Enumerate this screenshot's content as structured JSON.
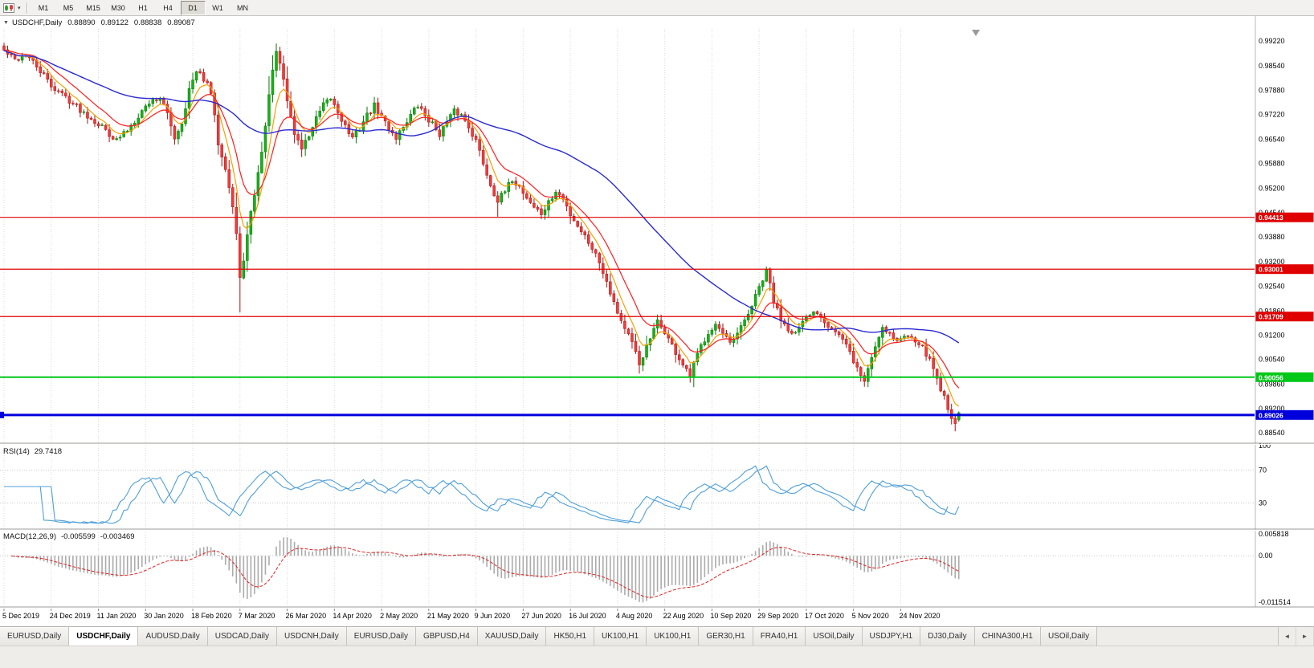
{
  "toolbar": {
    "timeframes": [
      "M1",
      "M5",
      "M15",
      "M30",
      "H1",
      "H4",
      "D1",
      "W1",
      "MN"
    ],
    "active_timeframe": "D1",
    "caret_icon": "▾"
  },
  "chart": {
    "title": "USDCHF,Daily",
    "title_caret": "▼",
    "ohlc": {
      "open": "0.88890",
      "high": "0.89122",
      "low": "0.88838",
      "close": "0.89087"
    },
    "price_axis": {
      "ticks": [
        "0.99220",
        "0.98540",
        "0.97880",
        "0.97220",
        "0.96540",
        "0.95880",
        "0.95200",
        "0.94540",
        "0.93880",
        "0.93200",
        "0.92540",
        "0.91860",
        "0.91200",
        "0.90540",
        "0.89860",
        "0.89200",
        "0.88540"
      ]
    },
    "hlines": [
      {
        "price": 0.94413,
        "label": "0.94413",
        "color": "#e00000",
        "width": 1.2
      },
      {
        "price": 0.93001,
        "label": "0.93001",
        "color": "#e00000",
        "width": 1.2
      },
      {
        "price": 0.91709,
        "label": "0.91709",
        "color": "#e00000",
        "width": 1.2
      },
      {
        "price": 0.90056,
        "label": "0.90056",
        "color": "#00c818",
        "width": 2
      },
      {
        "price": 0.89026,
        "label": "0.89026",
        "color": "#0000dc",
        "width": 3
      }
    ],
    "dates": [
      "5 Dec 2019",
      "24 Dec 2019",
      "11 Jan 2020",
      "30 Jan 2020",
      "18 Feb 2020",
      "7 Mar 2020",
      "26 Mar 2020",
      "14 Apr 2020",
      "2 May 2020",
      "21 May 2020",
      "9 Jun 2020",
      "27 Jun 2020",
      "16 Jul 2020",
      "4 Aug 2020",
      "22 Aug 2020",
      "10 Sep 2020",
      "29 Sep 2020",
      "17 Oct 2020",
      "5 Nov 2020",
      "24 Nov 2020"
    ],
    "colors": {
      "up_fill": "#17b117",
      "up_stroke": "#0a7a0a",
      "down_fill": "#f13b3b",
      "down_stroke": "#a81414",
      "grid": "#dbdbdb",
      "ma_fast": "#f5a000",
      "ma_medium": "#ff1c1c",
      "ma_slow": "#2a2ad2"
    }
  },
  "indicators": {
    "rsi": {
      "name": "RSI(14)",
      "value": "29.7418",
      "period": 14,
      "levels": [
        70,
        30
      ],
      "axis_labels": [
        {
          "value": 100,
          "label": "100"
        },
        {
          "value": 70,
          "label": "70"
        },
        {
          "value": 30,
          "label": "30"
        }
      ],
      "line_color": "#4f9fd8"
    },
    "macd": {
      "name": "MACD(12,26,9)",
      "value_macd": "-0.005599",
      "value_signal": "-0.003469",
      "fast": 12,
      "slow": 26,
      "signal": 9,
      "axis_max": 0.005818,
      "axis_min": -0.011514,
      "axis_labels": [
        {
          "value": 0.005818,
          "label": "0.005818"
        },
        {
          "value": 0,
          "label": "0.00"
        },
        {
          "value": -0.011514,
          "label": "-0.011514"
        }
      ],
      "histogram_color": "#ababab",
      "signal_color": "#e02020"
    }
  },
  "tabbar": {
    "items": [
      "EURUSD,Daily",
      "USDCHF,Daily",
      "AUDUSD,Daily",
      "USDCAD,Daily",
      "USDCNH,Daily",
      "EURUSD,Daily",
      "GBPUSD,H4",
      "XAUUSD,Daily",
      "HK50,H1",
      "UK100,H1",
      "UK100,H1",
      "GER30,H1",
      "FRA40,H1",
      "USOil,Daily",
      "USDJPY,H1",
      "DJ30,Daily",
      "CHINA300,H1",
      "USOil,Daily"
    ],
    "active_index": 1,
    "scroll_left_icon": "◄",
    "scroll_right_icon": "►"
  },
  "chart_data": {
    "type": "candlestick",
    "symbol": "USDCHF",
    "timeframe": "Daily",
    "num_candles": 264,
    "seed": 42,
    "noise": 0.0009,
    "price_min": 0.883,
    "price_max": 0.9955,
    "waypoints": [
      [
        0,
        0.9895
      ],
      [
        3,
        0.987
      ],
      [
        6,
        0.9885
      ],
      [
        10,
        0.984
      ],
      [
        13,
        0.98
      ],
      [
        17,
        0.977
      ],
      [
        21,
        0.9735
      ],
      [
        25,
        0.9705
      ],
      [
        28,
        0.968
      ],
      [
        31,
        0.965
      ],
      [
        34,
        0.968
      ],
      [
        37,
        0.972
      ],
      [
        40,
        0.9755
      ],
      [
        43,
        0.977
      ],
      [
        45,
        0.972
      ],
      [
        47,
        0.966
      ],
      [
        49,
        0.97
      ],
      [
        51,
        0.979
      ],
      [
        53,
        0.9835
      ],
      [
        55,
        0.982
      ],
      [
        57,
        0.978
      ],
      [
        59,
        0.9645
      ],
      [
        61,
        0.958
      ],
      [
        63,
        0.947
      ],
      [
        64,
        0.9395
      ],
      [
        65,
        0.927
      ],
      [
        66,
        0.933
      ],
      [
        67,
        0.939
      ],
      [
        68,
        0.945
      ],
      [
        70,
        0.956
      ],
      [
        72,
        0.969
      ],
      [
        74,
        0.985
      ],
      [
        75,
        0.9885
      ],
      [
        76,
        0.986
      ],
      [
        78,
        0.976
      ],
      [
        80,
        0.967
      ],
      [
        82,
        0.963
      ],
      [
        84,
        0.9665
      ],
      [
        86,
        0.971
      ],
      [
        88,
        0.9745
      ],
      [
        90,
        0.9765
      ],
      [
        92,
        0.973
      ],
      [
        94,
        0.969
      ],
      [
        96,
        0.9655
      ],
      [
        98,
        0.9685
      ],
      [
        100,
        0.972
      ],
      [
        102,
        0.9745
      ],
      [
        104,
        0.9715
      ],
      [
        106,
        0.9685
      ],
      [
        108,
        0.966
      ],
      [
        110,
        0.969
      ],
      [
        112,
        0.972
      ],
      [
        114,
        0.9745
      ],
      [
        116,
        0.972
      ],
      [
        118,
        0.9695
      ],
      [
        120,
        0.967
      ],
      [
        122,
        0.97
      ],
      [
        124,
        0.973
      ],
      [
        126,
        0.972
      ],
      [
        128,
        0.969
      ],
      [
        130,
        0.965
      ],
      [
        132,
        0.959
      ],
      [
        134,
        0.953
      ],
      [
        136,
        0.9487
      ],
      [
        138,
        0.951
      ],
      [
        140,
        0.9545
      ],
      [
        142,
        0.9525
      ],
      [
        144,
        0.9495
      ],
      [
        146,
        0.947
      ],
      [
        148,
        0.945
      ],
      [
        150,
        0.948
      ],
      [
        152,
        0.951
      ],
      [
        154,
        0.949
      ],
      [
        156,
        0.945
      ],
      [
        158,
        0.942
      ],
      [
        160,
        0.939
      ],
      [
        162,
        0.936
      ],
      [
        164,
        0.932
      ],
      [
        166,
        0.927
      ],
      [
        168,
        0.921
      ],
      [
        170,
        0.916
      ],
      [
        172,
        0.912
      ],
      [
        174,
        0.907
      ],
      [
        175,
        0.904
      ],
      [
        176,
        0.9065
      ],
      [
        178,
        0.911
      ],
      [
        180,
        0.9155
      ],
      [
        182,
        0.913
      ],
      [
        184,
        0.909
      ],
      [
        186,
        0.9055
      ],
      [
        188,
        0.902
      ],
      [
        189,
        0.9005
      ],
      [
        190,
        0.904
      ],
      [
        192,
        0.909
      ],
      [
        194,
        0.913
      ],
      [
        196,
        0.915
      ],
      [
        198,
        0.912
      ],
      [
        200,
        0.9095
      ],
      [
        202,
        0.912
      ],
      [
        204,
        0.916
      ],
      [
        206,
        0.92
      ],
      [
        208,
        0.925
      ],
      [
        210,
        0.9292
      ],
      [
        211,
        0.926
      ],
      [
        212,
        0.921
      ],
      [
        214,
        0.9165
      ],
      [
        216,
        0.914
      ],
      [
        218,
        0.9125
      ],
      [
        220,
        0.915
      ],
      [
        222,
        0.9175
      ],
      [
        224,
        0.9185
      ],
      [
        226,
        0.916
      ],
      [
        228,
        0.914
      ],
      [
        230,
        0.912
      ],
      [
        232,
        0.909
      ],
      [
        234,
        0.905
      ],
      [
        236,
        0.901
      ],
      [
        237,
        0.8995
      ],
      [
        238,
        0.903
      ],
      [
        240,
        0.909
      ],
      [
        242,
        0.9145
      ],
      [
        244,
        0.9125
      ],
      [
        246,
        0.9105
      ],
      [
        248,
        0.9115
      ],
      [
        250,
        0.912
      ],
      [
        252,
        0.91
      ],
      [
        254,
        0.907
      ],
      [
        256,
        0.903
      ],
      [
        258,
        0.8975
      ],
      [
        260,
        0.8925
      ],
      [
        261,
        0.8895
      ],
      [
        262,
        0.8884
      ],
      [
        263,
        0.8909
      ]
    ],
    "extremes": [
      {
        "i": 65,
        "low": 0.9182
      },
      {
        "i": 75,
        "high": 0.9905
      },
      {
        "i": 136,
        "low": 0.9443
      },
      {
        "i": 175,
        "low": 0.9036
      },
      {
        "i": 189,
        "low": 0.8998
      },
      {
        "i": 237,
        "low": 0.8985
      },
      {
        "i": 262,
        "low": 0.8858
      }
    ],
    "moving_averages": [
      {
        "name": "fast",
        "type": "ema",
        "period": 6
      },
      {
        "name": "medium",
        "type": "ema",
        "period": 13
      },
      {
        "name": "slow",
        "type": "sma",
        "period": 55
      }
    ],
    "last_candle": {
      "open": 0.8889,
      "high": 0.89122,
      "low": 0.88838,
      "close": 0.89087
    }
  }
}
